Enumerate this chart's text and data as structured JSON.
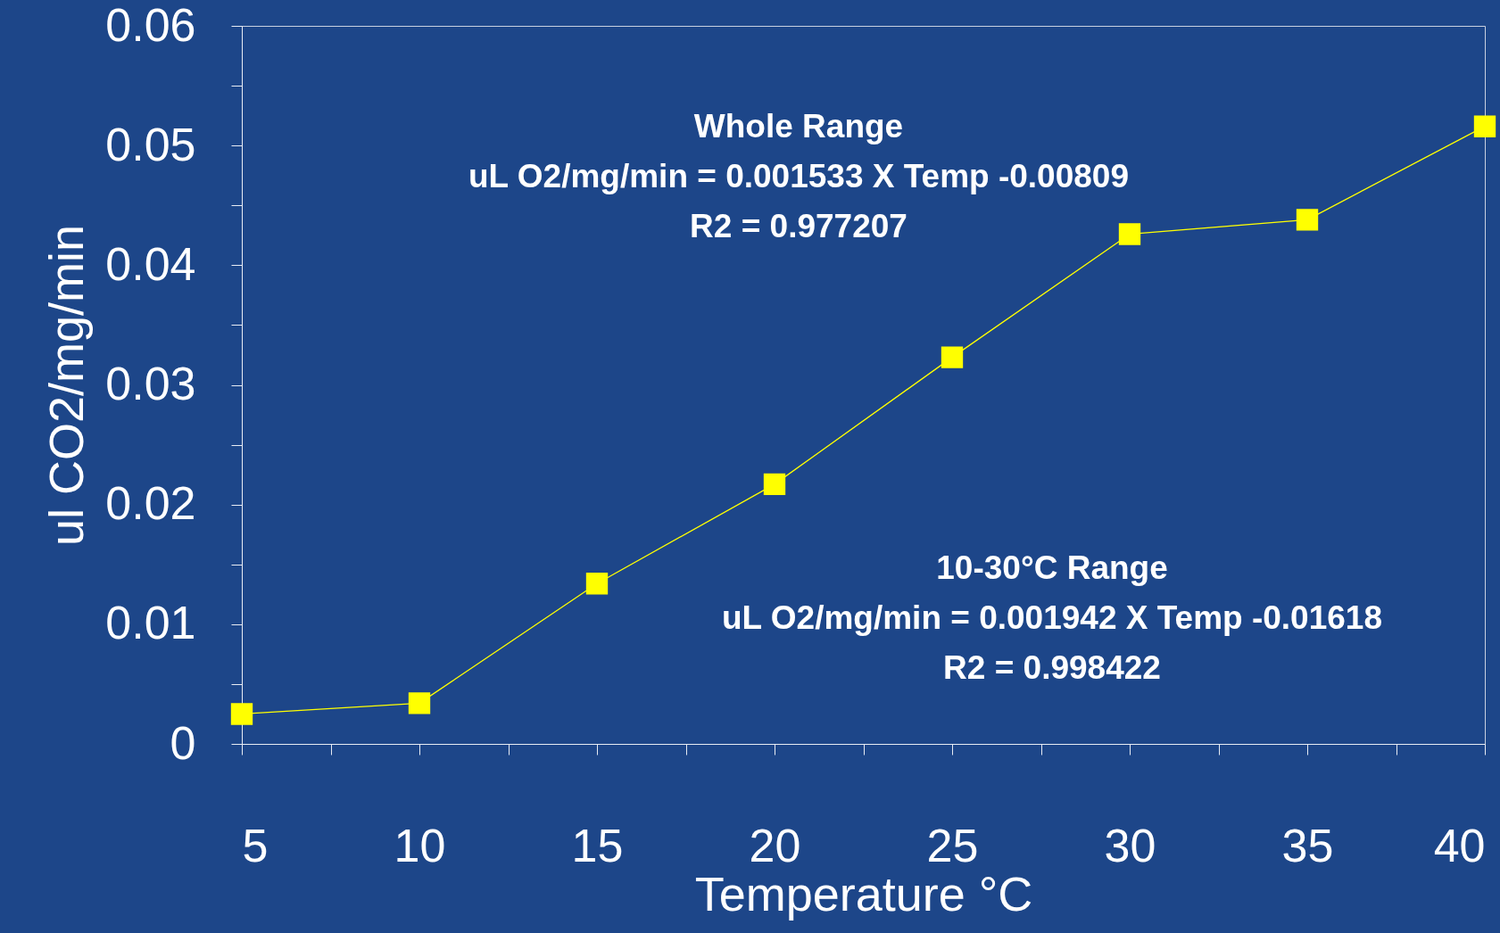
{
  "chart_data": {
    "type": "line",
    "xlabel": "Temperature  °C",
    "ylabel": "ul CO2/mg/min",
    "x": [
      5,
      10,
      15,
      20,
      25,
      30,
      35,
      40
    ],
    "series": [
      {
        "color": "#ffff00",
        "values": [
          0.0025,
          0.0034,
          0.0134,
          0.0217,
          0.0323,
          0.0426,
          0.0438,
          0.0516
        ]
      }
    ],
    "xlim": [
      5,
      40
    ],
    "xticks": [
      5,
      {
        "value": 7.5,
        "label": null
      },
      10,
      {
        "value": 12.5,
        "label": null
      },
      15,
      {
        "value": 17.5,
        "label": null
      },
      20,
      {
        "value": 22.5,
        "label": null
      },
      25,
      {
        "value": 27.5,
        "label": null
      },
      30,
      {
        "value": 32.5,
        "label": null
      },
      35,
      {
        "value": 37.5,
        "label": null
      },
      40
    ],
    "ylim": [
      0,
      0.06
    ],
    "yticks": [
      0,
      {
        "value": 0.005,
        "label": null
      },
      0.01,
      {
        "value": 0.015,
        "label": null
      },
      0.02,
      {
        "value": 0.025,
        "label": null
      },
      0.03,
      {
        "value": 0.035,
        "label": null
      },
      0.04,
      {
        "value": 0.045,
        "label": null
      },
      0.05,
      {
        "value": 0.055,
        "label": null
      },
      0.06
    ],
    "marker": "square",
    "line_style": "solid",
    "grid": false,
    "annotations": [
      "Whole Range\nuL O2/mg/min = 0.001533 X Temp -0.00809\nR2 = 0.977207",
      "10-30°C Range\nuL O2/mg/min = 0.001942 X Temp -0.01618\nR2 = 0.998422"
    ]
  }
}
